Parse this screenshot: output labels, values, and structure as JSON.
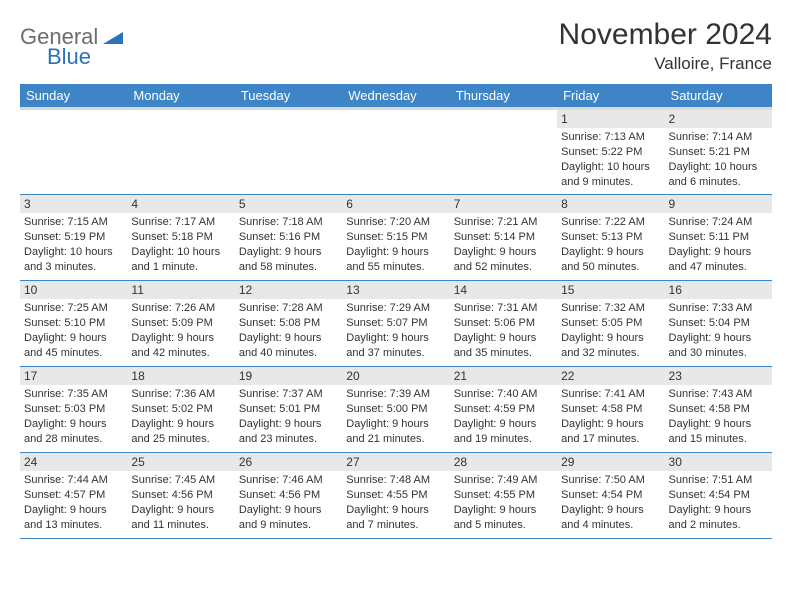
{
  "logo": {
    "part1": "General",
    "part2": "Blue",
    "accent_color": "#2d72b8",
    "gray_color": "#6d6d6d"
  },
  "title": "November 2024",
  "location": "Valloire, France",
  "header_bg": "#3d85c6",
  "daynum_bg": "#e8e8e8",
  "border_color": "#3d85c6",
  "weekdays": [
    "Sunday",
    "Monday",
    "Tuesday",
    "Wednesday",
    "Thursday",
    "Friday",
    "Saturday"
  ],
  "weeks": [
    [
      {
        "day": "",
        "sunrise": "",
        "sunset": "",
        "daylight": ""
      },
      {
        "day": "",
        "sunrise": "",
        "sunset": "",
        "daylight": ""
      },
      {
        "day": "",
        "sunrise": "",
        "sunset": "",
        "daylight": ""
      },
      {
        "day": "",
        "sunrise": "",
        "sunset": "",
        "daylight": ""
      },
      {
        "day": "",
        "sunrise": "",
        "sunset": "",
        "daylight": ""
      },
      {
        "day": "1",
        "sunrise": "Sunrise: 7:13 AM",
        "sunset": "Sunset: 5:22 PM",
        "daylight": "Daylight: 10 hours and 9 minutes."
      },
      {
        "day": "2",
        "sunrise": "Sunrise: 7:14 AM",
        "sunset": "Sunset: 5:21 PM",
        "daylight": "Daylight: 10 hours and 6 minutes."
      }
    ],
    [
      {
        "day": "3",
        "sunrise": "Sunrise: 7:15 AM",
        "sunset": "Sunset: 5:19 PM",
        "daylight": "Daylight: 10 hours and 3 minutes."
      },
      {
        "day": "4",
        "sunrise": "Sunrise: 7:17 AM",
        "sunset": "Sunset: 5:18 PM",
        "daylight": "Daylight: 10 hours and 1 minute."
      },
      {
        "day": "5",
        "sunrise": "Sunrise: 7:18 AM",
        "sunset": "Sunset: 5:16 PM",
        "daylight": "Daylight: 9 hours and 58 minutes."
      },
      {
        "day": "6",
        "sunrise": "Sunrise: 7:20 AM",
        "sunset": "Sunset: 5:15 PM",
        "daylight": "Daylight: 9 hours and 55 minutes."
      },
      {
        "day": "7",
        "sunrise": "Sunrise: 7:21 AM",
        "sunset": "Sunset: 5:14 PM",
        "daylight": "Daylight: 9 hours and 52 minutes."
      },
      {
        "day": "8",
        "sunrise": "Sunrise: 7:22 AM",
        "sunset": "Sunset: 5:13 PM",
        "daylight": "Daylight: 9 hours and 50 minutes."
      },
      {
        "day": "9",
        "sunrise": "Sunrise: 7:24 AM",
        "sunset": "Sunset: 5:11 PM",
        "daylight": "Daylight: 9 hours and 47 minutes."
      }
    ],
    [
      {
        "day": "10",
        "sunrise": "Sunrise: 7:25 AM",
        "sunset": "Sunset: 5:10 PM",
        "daylight": "Daylight: 9 hours and 45 minutes."
      },
      {
        "day": "11",
        "sunrise": "Sunrise: 7:26 AM",
        "sunset": "Sunset: 5:09 PM",
        "daylight": "Daylight: 9 hours and 42 minutes."
      },
      {
        "day": "12",
        "sunrise": "Sunrise: 7:28 AM",
        "sunset": "Sunset: 5:08 PM",
        "daylight": "Daylight: 9 hours and 40 minutes."
      },
      {
        "day": "13",
        "sunrise": "Sunrise: 7:29 AM",
        "sunset": "Sunset: 5:07 PM",
        "daylight": "Daylight: 9 hours and 37 minutes."
      },
      {
        "day": "14",
        "sunrise": "Sunrise: 7:31 AM",
        "sunset": "Sunset: 5:06 PM",
        "daylight": "Daylight: 9 hours and 35 minutes."
      },
      {
        "day": "15",
        "sunrise": "Sunrise: 7:32 AM",
        "sunset": "Sunset: 5:05 PM",
        "daylight": "Daylight: 9 hours and 32 minutes."
      },
      {
        "day": "16",
        "sunrise": "Sunrise: 7:33 AM",
        "sunset": "Sunset: 5:04 PM",
        "daylight": "Daylight: 9 hours and 30 minutes."
      }
    ],
    [
      {
        "day": "17",
        "sunrise": "Sunrise: 7:35 AM",
        "sunset": "Sunset: 5:03 PM",
        "daylight": "Daylight: 9 hours and 28 minutes."
      },
      {
        "day": "18",
        "sunrise": "Sunrise: 7:36 AM",
        "sunset": "Sunset: 5:02 PM",
        "daylight": "Daylight: 9 hours and 25 minutes."
      },
      {
        "day": "19",
        "sunrise": "Sunrise: 7:37 AM",
        "sunset": "Sunset: 5:01 PM",
        "daylight": "Daylight: 9 hours and 23 minutes."
      },
      {
        "day": "20",
        "sunrise": "Sunrise: 7:39 AM",
        "sunset": "Sunset: 5:00 PM",
        "daylight": "Daylight: 9 hours and 21 minutes."
      },
      {
        "day": "21",
        "sunrise": "Sunrise: 7:40 AM",
        "sunset": "Sunset: 4:59 PM",
        "daylight": "Daylight: 9 hours and 19 minutes."
      },
      {
        "day": "22",
        "sunrise": "Sunrise: 7:41 AM",
        "sunset": "Sunset: 4:58 PM",
        "daylight": "Daylight: 9 hours and 17 minutes."
      },
      {
        "day": "23",
        "sunrise": "Sunrise: 7:43 AM",
        "sunset": "Sunset: 4:58 PM",
        "daylight": "Daylight: 9 hours and 15 minutes."
      }
    ],
    [
      {
        "day": "24",
        "sunrise": "Sunrise: 7:44 AM",
        "sunset": "Sunset: 4:57 PM",
        "daylight": "Daylight: 9 hours and 13 minutes."
      },
      {
        "day": "25",
        "sunrise": "Sunrise: 7:45 AM",
        "sunset": "Sunset: 4:56 PM",
        "daylight": "Daylight: 9 hours and 11 minutes."
      },
      {
        "day": "26",
        "sunrise": "Sunrise: 7:46 AM",
        "sunset": "Sunset: 4:56 PM",
        "daylight": "Daylight: 9 hours and 9 minutes."
      },
      {
        "day": "27",
        "sunrise": "Sunrise: 7:48 AM",
        "sunset": "Sunset: 4:55 PM",
        "daylight": "Daylight: 9 hours and 7 minutes."
      },
      {
        "day": "28",
        "sunrise": "Sunrise: 7:49 AM",
        "sunset": "Sunset: 4:55 PM",
        "daylight": "Daylight: 9 hours and 5 minutes."
      },
      {
        "day": "29",
        "sunrise": "Sunrise: 7:50 AM",
        "sunset": "Sunset: 4:54 PM",
        "daylight": "Daylight: 9 hours and 4 minutes."
      },
      {
        "day": "30",
        "sunrise": "Sunrise: 7:51 AM",
        "sunset": "Sunset: 4:54 PM",
        "daylight": "Daylight: 9 hours and 2 minutes."
      }
    ]
  ]
}
